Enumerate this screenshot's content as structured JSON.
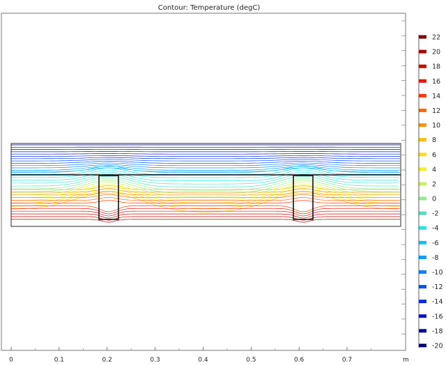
{
  "title": "Contour: Temperature (degC)",
  "x_unit": "m",
  "chart_data": {
    "type": "contour",
    "title": "Contour: Temperature (degC)",
    "xlabel": "m",
    "ylabel": "",
    "x_ticks": [
      0,
      0.1,
      0.2,
      0.3,
      0.4,
      0.5,
      0.6,
      0.7
    ],
    "xlim": [
      -0.02,
      0.825
    ],
    "legend_position": "right",
    "legend_levels": [
      22,
      20,
      18,
      16,
      14,
      12,
      10,
      8,
      6,
      4,
      2,
      0,
      -2,
      -4,
      -6,
      -8,
      -10,
      -12,
      -14,
      -16,
      -18,
      -20
    ],
    "legend_colors": [
      "#7f0000",
      "#a50000",
      "#cc0000",
      "#ee1010",
      "#ff3a00",
      "#ff6a00",
      "#ff9500",
      "#ffc000",
      "#ffe000",
      "#f0f020",
      "#c8f060",
      "#90ee90",
      "#50e0c0",
      "#20e8e8",
      "#00c8f0",
      "#00a0ff",
      "#1080ff",
      "#0050ff",
      "#0028e8",
      "#0010c0",
      "#000098",
      "#000070"
    ],
    "geometry": {
      "domain_x": [
        0.0,
        0.815
      ],
      "studs_x": [
        [
          0.183,
          0.187
        ],
        [
          0.589,
          0.593
        ]
      ],
      "stud_width": 0.032
    }
  }
}
